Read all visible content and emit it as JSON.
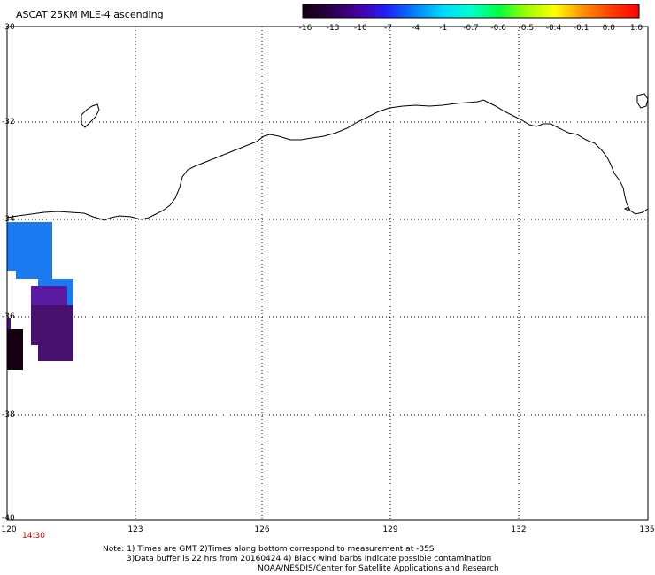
{
  "title": "ASCAT 25KM MLE-4 ascending",
  "colorbar": {
    "labels": [
      "-16",
      "-13",
      "-10",
      "-7",
      "-4",
      "-1",
      "-0.7",
      "-0.6",
      "-0.5",
      "-0.4",
      "-0.1",
      "0.0",
      "1.0"
    ],
    "colors": [
      "#140010",
      "#2a0048",
      "#4800a0",
      "#2020ff",
      "#0080ff",
      "#00d8ff",
      "#00ffd0",
      "#00ff40",
      "#a0ff00",
      "#ffff00",
      "#ff9000",
      "#ff4000",
      "#ff0000"
    ]
  },
  "map": {
    "lat_labels": [
      "-30",
      "-32",
      "-34",
      "-36",
      "-38",
      "-40"
    ],
    "lon_labels": [
      "120",
      "123",
      "126",
      "129",
      "132",
      "135"
    ],
    "time_label": "14:30",
    "time_color": "#cc0000",
    "swath_colors": [
      "#1c7af0",
      "#5a1aa0",
      "#46106e",
      "#140010"
    ]
  },
  "notes": {
    "line1": "Note: 1) Times are GMT 2)Times along bottom correspond to measurement at -35S",
    "line2": "3)Data buffer is 22 hrs from 20160424 4) Black wind barbs indicate possible contamination",
    "line3": "NOAA/NESDIS/Center for Satellite Applications and Research"
  }
}
